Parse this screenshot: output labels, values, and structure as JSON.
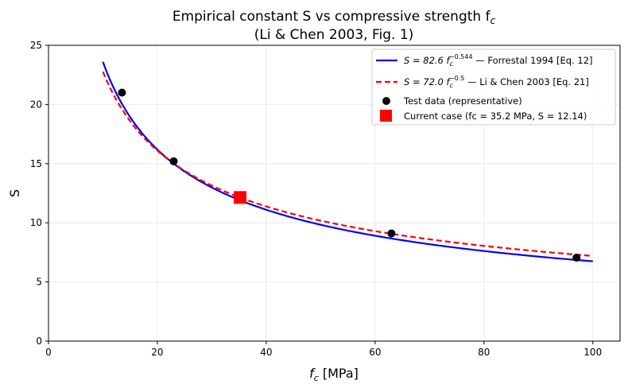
{
  "chart_data": {
    "type": "line",
    "title_line1": "Empirical constant S vs compressive strength f",
    "title_line1_sub": "c",
    "title_line2": "(Li & Chen 2003, Fig. 1)",
    "xlabel": "f",
    "xlabel_sub": "c",
    "xlabel_unit": " [MPa]",
    "ylabel": "S",
    "xlim": [
      0,
      105
    ],
    "ylim": [
      0,
      25
    ],
    "xticks": [
      0,
      20,
      40,
      60,
      80,
      100
    ],
    "yticks": [
      0,
      5,
      10,
      15,
      20,
      25
    ],
    "grid": true,
    "legend_placement": "top-right",
    "series": [
      {
        "name": "S = 82.6 f_c^-0.544 — Forrestal 1994 [Eq. 12]",
        "legend_main": "S = 82.6 f",
        "legend_sub": "c",
        "legend_sup": "−0.544",
        "legend_rest": " — Forrestal 1994  [Eq. 12]",
        "kind": "curve",
        "coef": 82.6,
        "exponent": -0.544,
        "x_range": [
          10,
          100
        ],
        "color": "#0000ff",
        "dash": "solid"
      },
      {
        "name": "S = 72.0 f_c^-0.5 — Li & Chen 2003 [Eq. 21]",
        "legend_main": "S = 72.0 f",
        "legend_sub": "c",
        "legend_sup": "−0.5",
        "legend_rest": "  — Li & Chen 2003  [Eq. 21]",
        "kind": "curve",
        "coef": 72.0,
        "exponent": -0.5,
        "x_range": [
          10,
          100
        ],
        "color": "#ff0000",
        "dash": "dashed"
      },
      {
        "name": "Test data (representative)",
        "kind": "scatter",
        "color": "#000000",
        "marker": "circle",
        "x": [
          13.5,
          23,
          63,
          97
        ],
        "y": [
          21.0,
          15.2,
          9.1,
          7.05
        ]
      },
      {
        "name": "Current case  (fc = 35.2 MPa, S = 12.14)",
        "kind": "scatter",
        "color": "#ff0000",
        "marker": "square",
        "x": [
          35.2
        ],
        "y": [
          12.14
        ]
      }
    ]
  }
}
